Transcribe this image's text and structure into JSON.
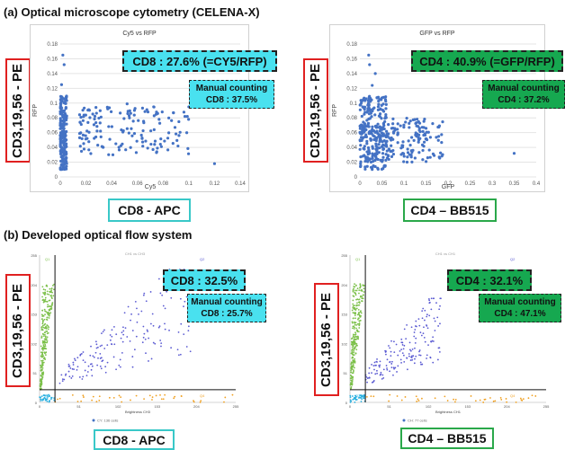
{
  "section_a": "(a) Optical microscope cytometry (CELENA-X)",
  "section_b": "(b) Developed optical flow system",
  "panels": {
    "a_left": {
      "ylabel": "CD3,19,56 - PE",
      "xlabel": "CD8 - APC",
      "percent": "CD8 : 27.6% (=CY5/RFP)",
      "manual_title": "Manual counting",
      "manual_value": "CD8 : 37.5%"
    },
    "a_right": {
      "ylabel": "CD3,19,56 - PE",
      "xlabel": "CD4 – BB515",
      "percent": "CD4 : 40.9% (=GFP/RFP)",
      "manual_title": "Manual counting",
      "manual_value": "CD4 : 37.2%"
    },
    "b_left": {
      "ylabel": "CD3,19,56 - PE",
      "xlabel": "CD8 - APC",
      "percent": "CD8 : 32.5%",
      "manual_title": "Manual counting",
      "manual_value": "CD8 : 25.7%"
    },
    "b_right": {
      "ylabel": "CD3,19,56 - PE",
      "xlabel": "CD4 – BB515",
      "percent": "CD4 : 32.1%",
      "manual_title": "Manual counting",
      "manual_value": "CD4 : 47.1%"
    }
  },
  "chart_data": [
    {
      "type": "scatter",
      "title": "Cy5 vs RFP",
      "xlabel": "Cy5",
      "ylabel": "RFP",
      "xlim": [
        0,
        0.14
      ],
      "ylim": [
        0,
        0.18
      ],
      "x_ticks": [
        "0",
        "0.02",
        "0.04",
        "0.06",
        "0.08",
        "0.1",
        "0.12",
        "0.14"
      ],
      "y_ticks": [
        "0",
        "0.02",
        "0.04",
        "0.06",
        "0.08",
        "0.1",
        "0.12",
        "0.14",
        "0.16",
        "0.18"
      ],
      "grid": true,
      "color": "#4472c4",
      "clusters": [
        {
          "x_range": [
            0.0,
            0.005
          ],
          "y_range": [
            0.01,
            0.11
          ],
          "count": 200
        },
        {
          "x_range": [
            0.015,
            0.1
          ],
          "y_range": [
            0.03,
            0.095
          ],
          "count": 150
        }
      ],
      "points": [
        [
          0.002,
          0.165
        ],
        [
          0.003,
          0.152
        ],
        [
          0.001,
          0.125
        ],
        [
          0.097,
          0.082
        ],
        [
          0.12,
          0.018
        ],
        [
          0.052,
          0.099
        ],
        [
          0.088,
          0.087
        ]
      ]
    },
    {
      "type": "scatter",
      "title": "GFP vs RFP",
      "xlabel": "GFP",
      "ylabel": "RFP",
      "xlim": [
        0,
        0.4
      ],
      "ylim": [
        0,
        0.18
      ],
      "x_ticks": [
        "0",
        "0.05",
        "0.1",
        "0.15",
        "0.2",
        "0.25",
        "0.3",
        "0.35",
        "0.4"
      ],
      "y_ticks": [
        "0",
        "0.02",
        "0.04",
        "0.06",
        "0.08",
        "0.1",
        "0.12",
        "0.14",
        "0.16",
        "0.18"
      ],
      "grid": true,
      "color": "#4472c4",
      "clusters": [
        {
          "x_range": [
            0.0,
            0.06
          ],
          "y_range": [
            0.01,
            0.11
          ],
          "count": 250
        },
        {
          "x_range": [
            0.05,
            0.19
          ],
          "y_range": [
            0.02,
            0.08
          ],
          "count": 160
        }
      ],
      "points": [
        [
          0.02,
          0.165
        ],
        [
          0.022,
          0.152
        ],
        [
          0.028,
          0.124
        ],
        [
          0.35,
          0.032
        ],
        [
          0.035,
          0.14
        ]
      ]
    },
    {
      "type": "scatter",
      "title": "CH1 vs CH3",
      "xlabel": "Brightness CH3",
      "ylabel": "",
      "xlim": [
        0,
        255
      ],
      "ylim": [
        0,
        255
      ],
      "x_ticks": [
        "0",
        "51",
        "102",
        "153",
        "204",
        "255"
      ],
      "y_ticks": [
        "0",
        "51",
        "102",
        "153",
        "204",
        "255"
      ],
      "legend": "CY: 136 cells",
      "gates": {
        "x": 20,
        "y": 22
      },
      "quadrant_stats": [
        "Q1",
        "Q2",
        "Q3",
        "Q4"
      ],
      "series": [
        {
          "name": "green",
          "color": "#7cc04a",
          "x_range": [
            0,
            20
          ],
          "y_range": [
            22,
            205
          ]
        },
        {
          "name": "blue",
          "color": "#5a5ad2",
          "x_range": [
            20,
            200
          ],
          "y_range": [
            22,
            230
          ]
        },
        {
          "name": "cyan",
          "color": "#2ab0e0",
          "x_range": [
            0,
            20
          ],
          "y_range": [
            0,
            22
          ]
        },
        {
          "name": "orange",
          "color": "#f0a020",
          "x_range": [
            20,
            255
          ],
          "y_range": [
            0,
            22
          ]
        }
      ]
    },
    {
      "type": "scatter",
      "title": "CH1 vs CH1",
      "xlabel": "Brightness CH1",
      "ylabel": "",
      "xlim": [
        0,
        255
      ],
      "ylim": [
        0,
        255
      ],
      "x_ticks": [
        "0",
        "51",
        "102",
        "153",
        "204",
        "255"
      ],
      "y_ticks": [
        "0",
        "51",
        "102",
        "153",
        "204",
        "255"
      ],
      "legend": "CH: 77 cells",
      "gates": {
        "x": 20,
        "y": 22
      },
      "quadrant_stats": [
        "Q1",
        "Q2",
        "Q3",
        "Q4"
      ],
      "series": [
        {
          "name": "green",
          "color": "#7cc04a",
          "x_range": [
            0,
            20
          ],
          "y_range": [
            22,
            205
          ]
        },
        {
          "name": "blue",
          "color": "#5a5ad2",
          "x_range": [
            20,
            120
          ],
          "y_range": [
            22,
            180
          ]
        },
        {
          "name": "cyan",
          "color": "#2ab0e0",
          "x_range": [
            0,
            20
          ],
          "y_range": [
            0,
            22
          ]
        },
        {
          "name": "orange",
          "color": "#f0a020",
          "x_range": [
            20,
            255
          ],
          "y_range": [
            0,
            22
          ]
        }
      ]
    }
  ]
}
